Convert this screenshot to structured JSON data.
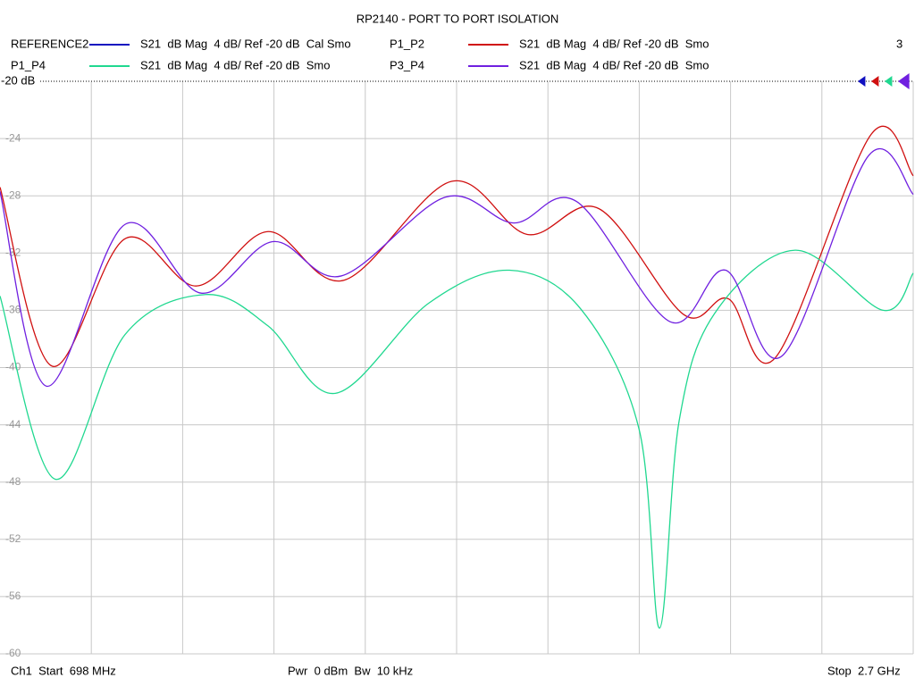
{
  "chart_data": {
    "type": "line",
    "title": "RP2140 - PORT TO PORT ISOLATION",
    "channel_number": "3",
    "reference_label": "-20 dB",
    "start_label": "Ch1  Start  698 MHz",
    "power_label": "Pwr  0 dBm  Bw  10 kHz",
    "stop_label": "Stop  2.7 GHz",
    "xlim": [
      698,
      2700
    ],
    "x_divisions": 10,
    "ylim": [
      -60,
      -20
    ],
    "yticks": [
      -20,
      -24,
      -28,
      -32,
      -36,
      -40,
      -44,
      -48,
      -52,
      -56,
      -60
    ],
    "grid": true,
    "series": [
      {
        "name": "REFERENCE2",
        "description": "S21  dB Mag  4 dB/ Ref -20 dB  Cal Smo",
        "color": "#1010c0",
        "x": [],
        "values": []
      },
      {
        "name": "P1_P2",
        "description": "S21  dB Mag  4 dB/ Ref -20 dB  Smo",
        "color": "#d01010",
        "x": [
          698,
          812,
          972,
          1129,
          1286,
          1452,
          1687,
          1854,
          2011,
          2197,
          2295,
          2398,
          2608,
          2700
        ],
        "values": [
          -27.4,
          -39.9,
          -31,
          -34.3,
          -30.5,
          -33.9,
          -27,
          -30.7,
          -28.9,
          -36.3,
          -35.2,
          -39.3,
          -23.7,
          -26.6
        ]
      },
      {
        "name": "P1_P4",
        "description": "S21  dB Mag  4 dB/ Ref -20 dB  Smo",
        "color": "#20d890",
        "x": [
          698,
          819,
          972,
          1149,
          1286,
          1433,
          1638,
          1815,
          1971,
          2099,
          2144,
          2187,
          2265,
          2442,
          2634,
          2700
        ],
        "values": [
          -35,
          -47.8,
          -37.7,
          -34.9,
          -37.1,
          -41.8,
          -35.5,
          -33.2,
          -35.9,
          -44.3,
          -58.2,
          -43.7,
          -36.2,
          -31.8,
          -36,
          -33.4
        ]
      },
      {
        "name": "P3_P4",
        "description": "S21  dB Mag  4 dB/ Ref -20 dB  Smo",
        "color": "#7020e0",
        "x": [
          698,
          800,
          972,
          1139,
          1296,
          1446,
          1674,
          1824,
          1962,
          2167,
          2289,
          2412,
          2602,
          2700
        ],
        "values": [
          -27.7,
          -41.3,
          -30,
          -34.8,
          -31.2,
          -33.6,
          -28.1,
          -29.9,
          -28.4,
          -36.8,
          -33.2,
          -39.2,
          -25.2,
          -27.9
        ]
      }
    ]
  }
}
